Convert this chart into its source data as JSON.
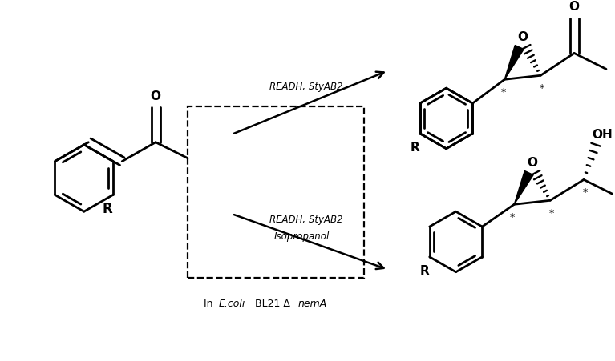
{
  "background_color": "#ffffff",
  "figsize": [
    7.67,
    4.51
  ],
  "dpi": 100,
  "arrow1_label_line1": "READH, StyAB2",
  "arrow2_label_line1": "READH, StyAB2",
  "arrow2_label_line2": "Isopropanol",
  "lw": 2.0
}
